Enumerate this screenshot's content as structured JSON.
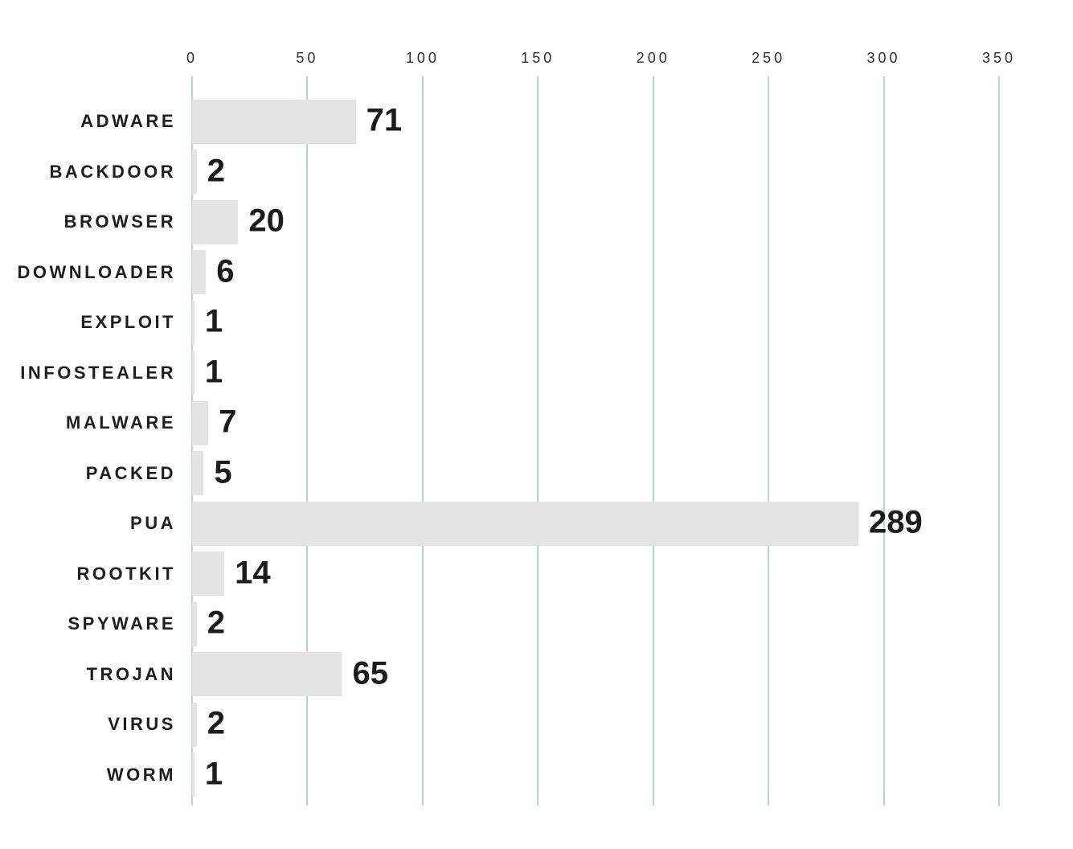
{
  "chart_data": {
    "type": "bar",
    "orientation": "horizontal",
    "title": "",
    "xlabel": "",
    "ylabel": "",
    "categories": [
      "ADWARE",
      "BACKDOOR",
      "BROWSER",
      "DOWNLOADER",
      "EXPLOIT",
      "INFOSTEALER",
      "MALWARE",
      "PACKED",
      "PUA",
      "ROOTKIT",
      "SPYWARE",
      "TROJAN",
      "VIRUS",
      "WORM"
    ],
    "values": [
      71,
      2,
      20,
      6,
      1,
      1,
      7,
      5,
      289,
      14,
      2,
      65,
      2,
      1
    ],
    "xticks": [
      0,
      50,
      100,
      150,
      200,
      250,
      300,
      350
    ],
    "xlim": [
      0,
      350
    ],
    "grid": "vertical-gridlines-on",
    "legend": "none",
    "colors": {
      "bar": "#e3e3e3",
      "gridline": "#b9d3d6",
      "category_label": "#1e1e1e",
      "value_label": "#1c1c1c",
      "tick_label": "#2f2f2f",
      "background": "#ffffff"
    }
  }
}
